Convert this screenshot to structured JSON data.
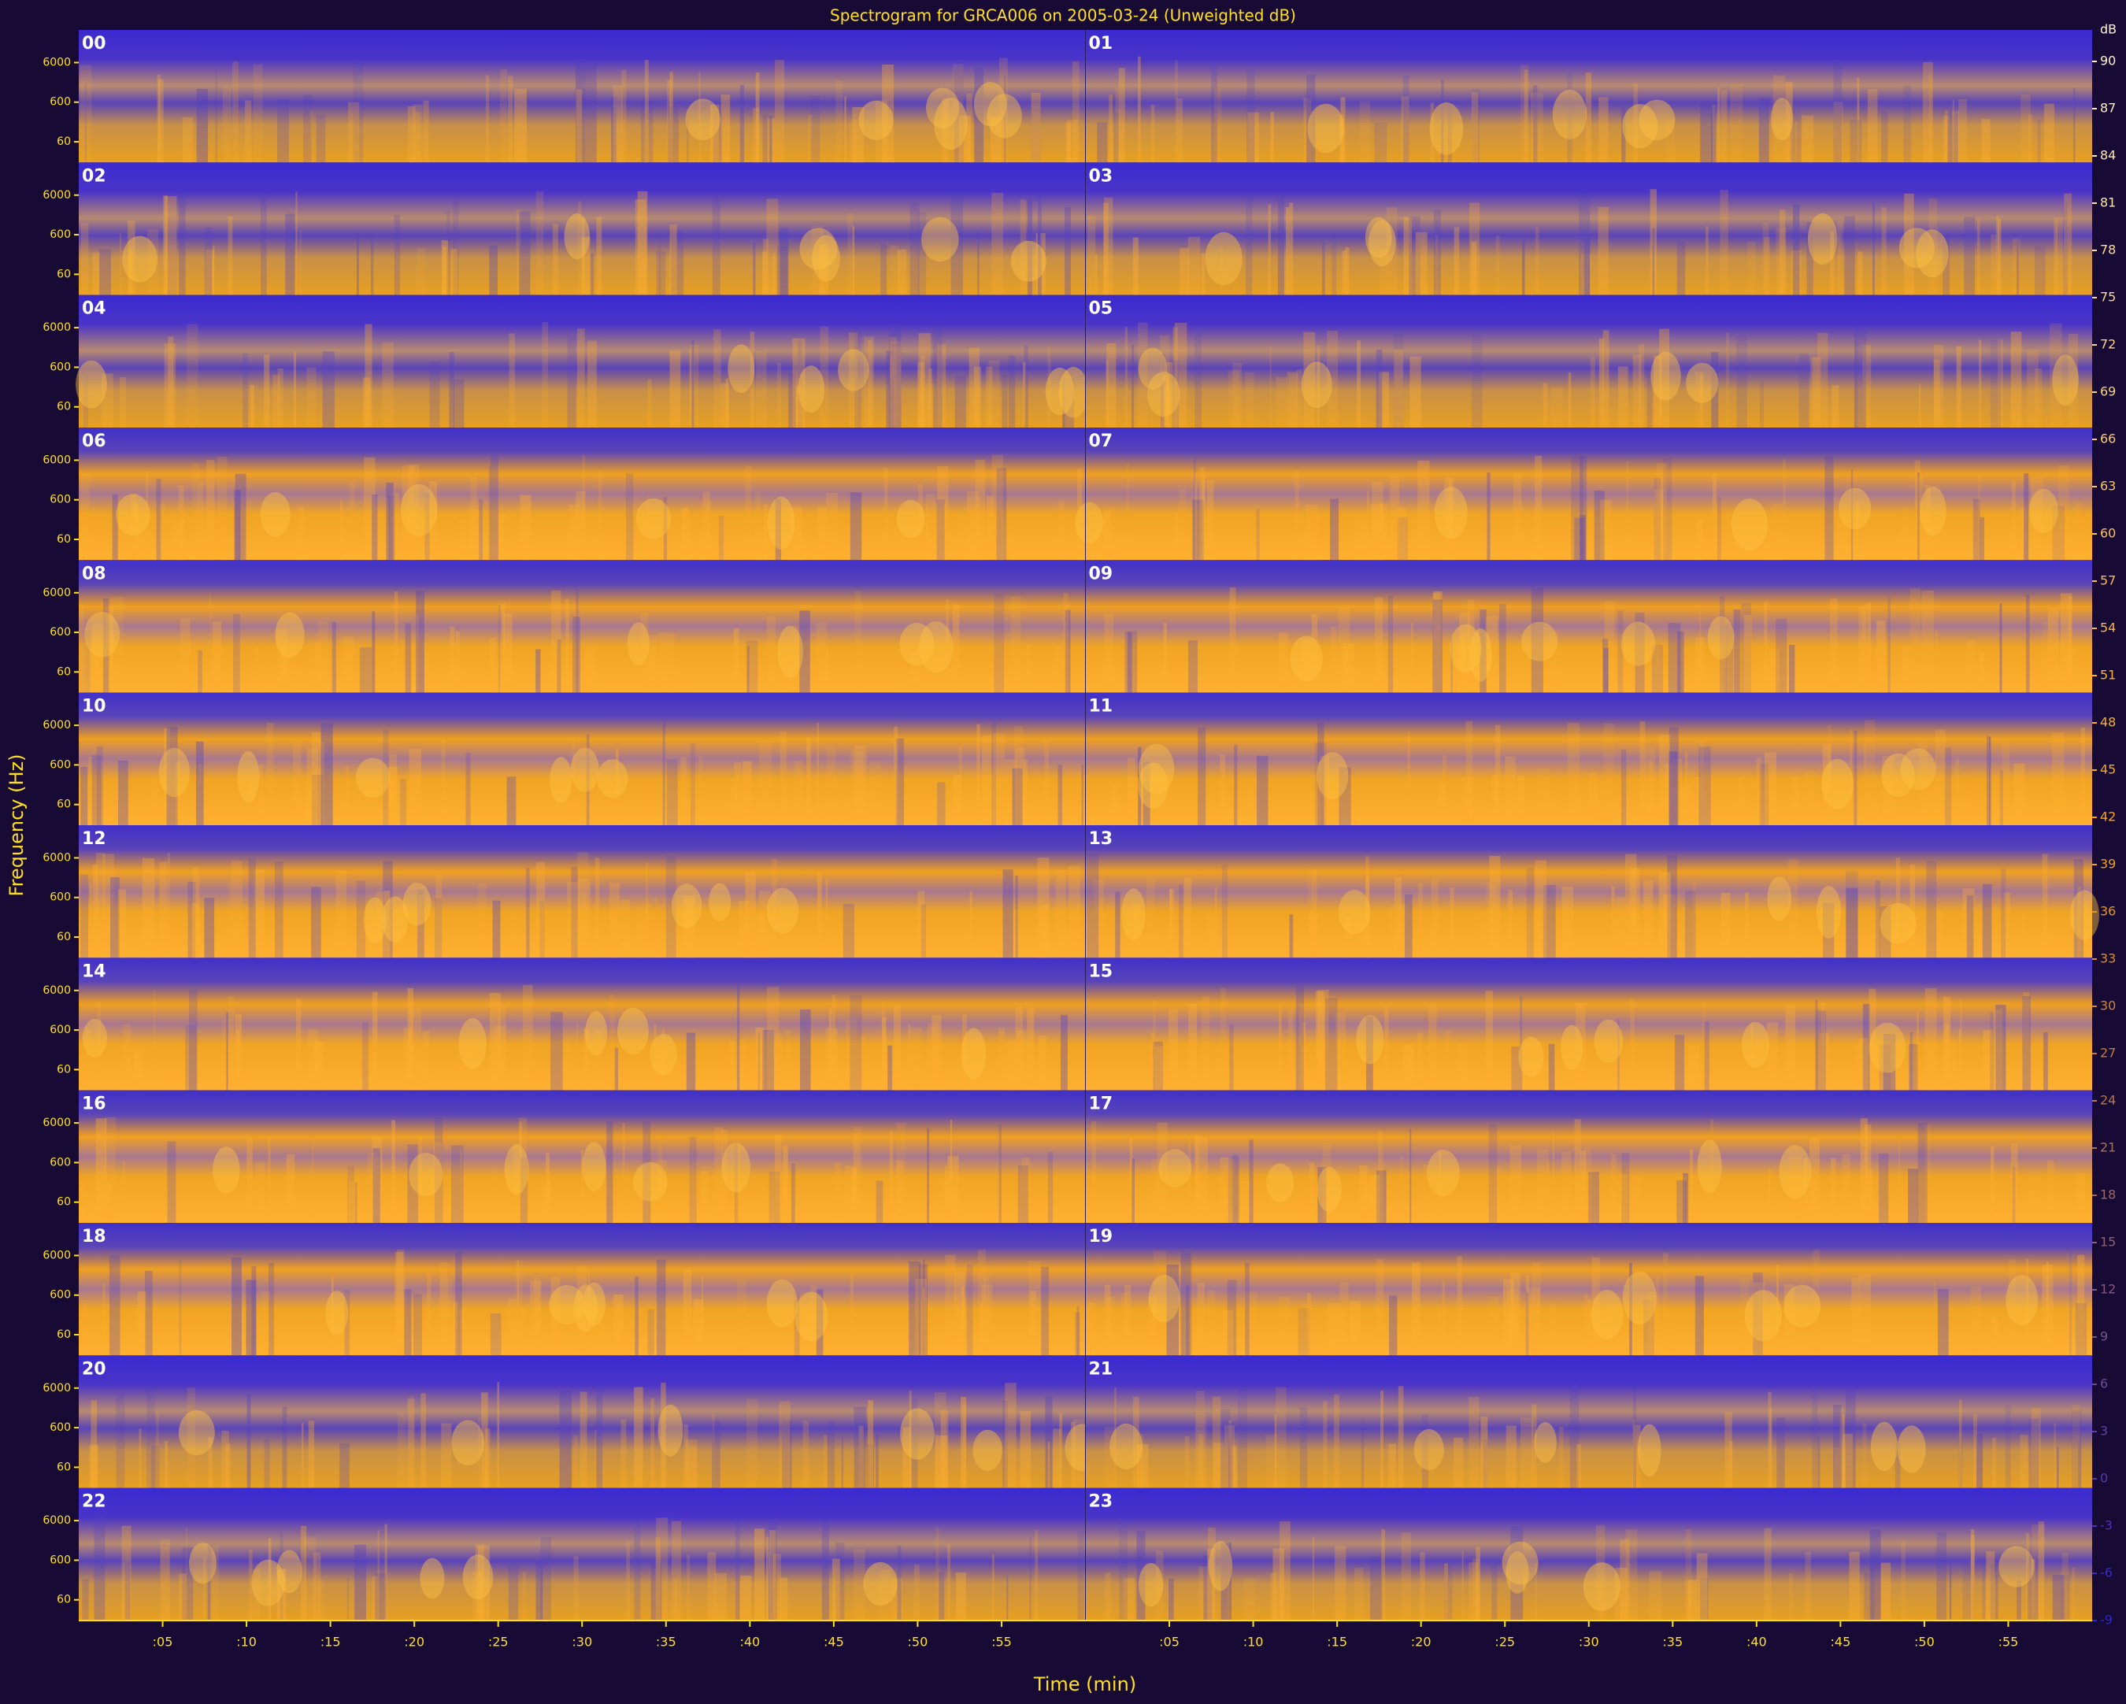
{
  "chart_data": {
    "type": "spectrogram",
    "title": "Spectrogram for GRCA006 on 2005-03-24 (Unweighted dB)",
    "xlabel": "Time (min)",
    "ylabel": "Frequency (Hz)",
    "panels": [
      "00",
      "01",
      "02",
      "03",
      "04",
      "05",
      "06",
      "07",
      "08",
      "09",
      "10",
      "11",
      "12",
      "13",
      "14",
      "15",
      "16",
      "17",
      "18",
      "19",
      "20",
      "21",
      "22",
      "23"
    ],
    "xlim": [
      0,
      60
    ],
    "xticks": [
      {
        "value": 5,
        "label": ":05"
      },
      {
        "value": 10,
        "label": ":10"
      },
      {
        "value": 15,
        "label": ":15"
      },
      {
        "value": 20,
        "label": ":20"
      },
      {
        "value": 25,
        "label": ":25"
      },
      {
        "value": 30,
        "label": ":30"
      },
      {
        "value": 35,
        "label": ":35"
      },
      {
        "value": 40,
        "label": ":40"
      },
      {
        "value": 45,
        "label": ":45"
      },
      {
        "value": 50,
        "label": ":50"
      },
      {
        "value": 55,
        "label": ":55"
      }
    ],
    "yscale": "log",
    "ylim": [
      18,
      40000
    ],
    "yticks": [
      60,
      600,
      6000
    ],
    "colorbar": {
      "label": "dB",
      "lim": [
        -9,
        92
      ],
      "ticks": [
        90,
        87,
        84,
        81,
        78,
        75,
        72,
        69,
        66,
        63,
        60,
        57,
        54,
        51,
        48,
        45,
        42,
        39,
        36,
        33,
        30,
        27,
        24,
        21,
        18,
        15,
        12,
        9,
        6,
        3,
        0,
        -3,
        -6,
        -9
      ]
    },
    "colormap": [
      "#2f22d6",
      "#ffa500",
      "#fff4d0"
    ]
  }
}
